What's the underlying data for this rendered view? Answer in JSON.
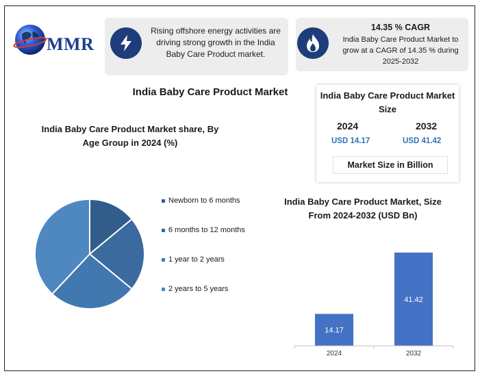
{
  "logo": {
    "text": "MMR"
  },
  "card_growth": {
    "icon": "lightning-icon",
    "text": "Rising offshore energy activities are driving strong growth in the India Baby Care Product market."
  },
  "card_cagr": {
    "icon": "flame-icon",
    "title": "14.35 % CAGR",
    "text": "India Baby Care Product Market to grow at a CAGR of 14.35 % during 2025-2032"
  },
  "main_title": "India Baby Care Product Market",
  "size_box": {
    "title": "India Baby Care Product Market Size",
    "year_a": "2024",
    "year_b": "2032",
    "value_a": "USD 14.17",
    "value_b": "USD 41.42",
    "footer": "Market Size in Billion"
  },
  "colors": {
    "pie": [
      "#325d8a",
      "#3a6a9e",
      "#4278b0",
      "#4f87c0"
    ],
    "bar": "#4472c4",
    "accent": "#2e72b8"
  },
  "chart_data": [
    {
      "type": "pie",
      "title": "India Baby Care Product Market share, By Age Group in 2024 (%)",
      "categories": [
        "Newborn to 6 months",
        "6 months to 12 months",
        "1 year to 2 years",
        "2 years to 5 years"
      ],
      "values": [
        14,
        22,
        26,
        38
      ],
      "legend": "right"
    },
    {
      "type": "bar",
      "title": "India Baby Care Product Market, Size From 2024-2032 (USD Bn)",
      "categories": [
        "2024",
        "2032"
      ],
      "values": [
        14.17,
        41.42
      ],
      "data_labels": [
        "14.17",
        "41.42"
      ],
      "ylim": [
        0,
        45
      ],
      "grid": false
    }
  ]
}
